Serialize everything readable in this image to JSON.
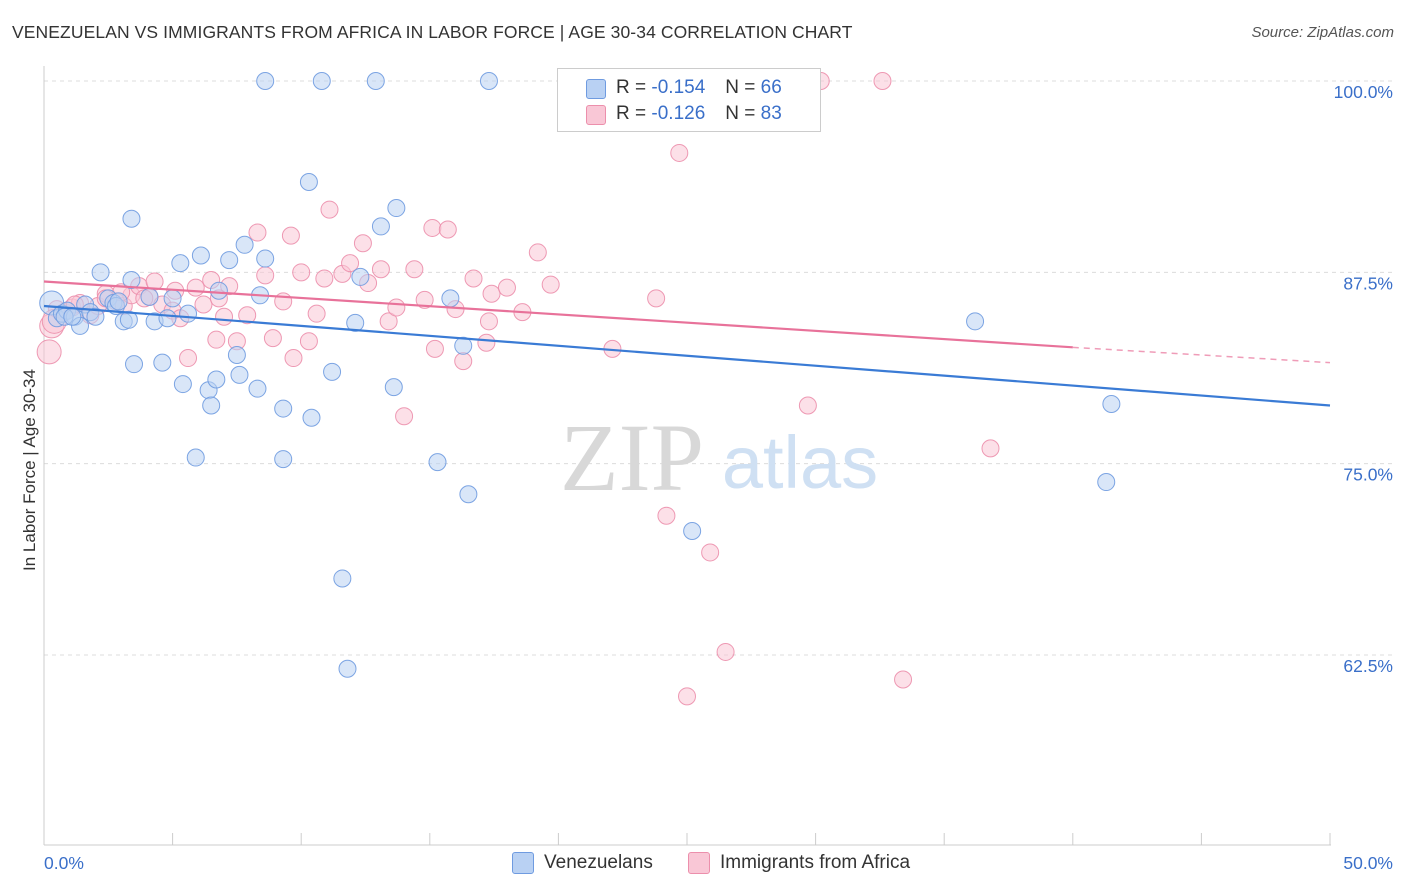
{
  "title": "VENEZUELAN VS IMMIGRANTS FROM AFRICA IN LABOR FORCE | AGE 30-34 CORRELATION CHART",
  "source": "Source: ZipAtlas.com",
  "watermark": {
    "zip": "ZIP",
    "atlas": "atlas"
  },
  "legend": {
    "r_label": "R =",
    "n_label": "N =",
    "rows": [
      {
        "r": "-0.154",
        "n": "66",
        "fill": "#b9d1f3",
        "stroke": "#6f9be0"
      },
      {
        "r": "-0.126",
        "n": "83",
        "fill": "#f9c7d6",
        "stroke": "#ec8fac"
      }
    ]
  },
  "bottom_legend": [
    {
      "label": "Venezuelans",
      "fill": "#b9d1f3",
      "stroke": "#6f9be0"
    },
    {
      "label": "Immigrants from Africa",
      "fill": "#f9c7d6",
      "stroke": "#ec8fac"
    }
  ],
  "chart_data": {
    "type": "scatter",
    "title": "VENEZUELAN VS IMMIGRANTS FROM AFRICA IN LABOR FORCE | AGE 30-34 CORRELATION CHART",
    "xlabel": "",
    "ylabel": "In Labor Force | Age 30-34",
    "xlim": [
      0,
      50
    ],
    "ylim": [
      50,
      101
    ],
    "x_ticks": [
      "0.0%",
      "50.0%"
    ],
    "y_ticks": [
      {
        "value": 100,
        "label": "100.0%"
      },
      {
        "value": 87.5,
        "label": "87.5%"
      },
      {
        "value": 75,
        "label": "75.0%"
      },
      {
        "value": 62.5,
        "label": "62.5%"
      }
    ],
    "grid": "horizontal dashed",
    "colors": {
      "blue": "#3a7bd5",
      "pink": "#e8729a",
      "tick_label": "#3a6fc9"
    },
    "series": [
      {
        "name": "Venezuelans",
        "trend": {
          "x": [
            0,
            50
          ],
          "y": [
            85.3,
            78.8
          ]
        },
        "points": [
          [
            0.3,
            85.5
          ],
          [
            0.5,
            84.5
          ],
          [
            0.7,
            84.8
          ],
          [
            0.9,
            85
          ],
          [
            1.2,
            84.6
          ],
          [
            1.4,
            84
          ],
          [
            1.6,
            85.4
          ],
          [
            1.8,
            84.9
          ],
          [
            2.0,
            84.6
          ],
          [
            2.2,
            87.5
          ],
          [
            2.5,
            85.8
          ],
          [
            2.7,
            85.5
          ],
          [
            2.8,
            85.3
          ],
          [
            3.1,
            84.3
          ],
          [
            3.3,
            84.4
          ],
          [
            3.4,
            87
          ],
          [
            3.5,
            81.5
          ],
          [
            3.4,
            91
          ],
          [
            4.1,
            85.9
          ],
          [
            4.3,
            84.3
          ],
          [
            4.6,
            81.6
          ],
          [
            4.8,
            84.5
          ],
          [
            5.0,
            85.8
          ],
          [
            5.3,
            88.1
          ],
          [
            5.4,
            80.2
          ],
          [
            5.6,
            84.8
          ],
          [
            5.9,
            75.4
          ],
          [
            6.1,
            88.6
          ],
          [
            6.4,
            79.8
          ],
          [
            6.5,
            78.8
          ],
          [
            6.7,
            80.5
          ],
          [
            6.8,
            86.3
          ],
          [
            7.2,
            88.3
          ],
          [
            7.5,
            82.1
          ],
          [
            7.6,
            80.8
          ],
          [
            7.8,
            89.3
          ],
          [
            8.3,
            79.9
          ],
          [
            8.4,
            86
          ],
          [
            8.6,
            88.4
          ],
          [
            8.6,
            100
          ],
          [
            9.3,
            78.6
          ],
          [
            9.3,
            75.3
          ],
          [
            10.3,
            93.4
          ],
          [
            10.4,
            78
          ],
          [
            10.8,
            100
          ],
          [
            11.2,
            81
          ],
          [
            11.6,
            67.5
          ],
          [
            11.8,
            61.6
          ],
          [
            12.1,
            84.2
          ],
          [
            12.3,
            87.2
          ],
          [
            12.9,
            100
          ],
          [
            13.1,
            90.5
          ],
          [
            13.6,
            80
          ],
          [
            13.7,
            91.7
          ],
          [
            15.3,
            75.1
          ],
          [
            15.8,
            85.8
          ],
          [
            16.3,
            82.7
          ],
          [
            16.5,
            73
          ],
          [
            17.3,
            100
          ],
          [
            25.2,
            70.6
          ],
          [
            36.2,
            84.3
          ],
          [
            41.3,
            73.8
          ],
          [
            41.5,
            78.9
          ],
          [
            0.8,
            84.6
          ],
          [
            1.1,
            84.6
          ],
          [
            2.9,
            85.6
          ]
        ]
      },
      {
        "name": "Immigrants from Africa",
        "trend": {
          "x": [
            0,
            40
          ],
          "y": [
            86.9,
            82.6
          ]
        },
        "trend_dashed": {
          "x": [
            40,
            50
          ],
          "y": [
            82.6,
            81.6
          ]
        },
        "points": [
          [
            0.2,
            82.3
          ],
          [
            0.3,
            84
          ],
          [
            0.5,
            85.1
          ],
          [
            0.8,
            84.9
          ],
          [
            1.1,
            85.2
          ],
          [
            1.4,
            85.5
          ],
          [
            1.8,
            84.7
          ],
          [
            2.1,
            85.3
          ],
          [
            2.4,
            86.1
          ],
          [
            2.8,
            85.6
          ],
          [
            3.1,
            85.3
          ],
          [
            3.4,
            86
          ],
          [
            3.7,
            86.6
          ],
          [
            4.1,
            85.9
          ],
          [
            4.3,
            86.9
          ],
          [
            4.6,
            85.4
          ],
          [
            5.0,
            85
          ],
          [
            5.3,
            84.5
          ],
          [
            5.6,
            81.9
          ],
          [
            5.9,
            86.5
          ],
          [
            6.2,
            85.4
          ],
          [
            6.5,
            87
          ],
          [
            6.7,
            83.1
          ],
          [
            7.0,
            84.6
          ],
          [
            7.2,
            86.6
          ],
          [
            7.5,
            83
          ],
          [
            7.9,
            84.7
          ],
          [
            8.3,
            90.1
          ],
          [
            8.6,
            87.3
          ],
          [
            8.9,
            83.2
          ],
          [
            9.3,
            85.6
          ],
          [
            9.6,
            89.9
          ],
          [
            9.7,
            81.9
          ],
          [
            10.0,
            87.5
          ],
          [
            10.3,
            83
          ],
          [
            10.6,
            84.8
          ],
          [
            10.9,
            87.1
          ],
          [
            11.1,
            91.6
          ],
          [
            11.6,
            87.4
          ],
          [
            11.9,
            88.1
          ],
          [
            12.4,
            89.4
          ],
          [
            12.6,
            86.8
          ],
          [
            13.1,
            87.7
          ],
          [
            13.4,
            84.3
          ],
          [
            13.7,
            85.2
          ],
          [
            14.0,
            78.1
          ],
          [
            14.4,
            87.7
          ],
          [
            14.8,
            85.7
          ],
          [
            15.1,
            90.4
          ],
          [
            15.2,
            82.5
          ],
          [
            15.7,
            90.3
          ],
          [
            16.0,
            85.1
          ],
          [
            16.3,
            81.7
          ],
          [
            16.7,
            87.1
          ],
          [
            17.2,
            82.9
          ],
          [
            17.3,
            84.3
          ],
          [
            17.4,
            86.1
          ],
          [
            18.0,
            86.5
          ],
          [
            18.6,
            84.9
          ],
          [
            19.2,
            88.8
          ],
          [
            19.7,
            86.7
          ],
          [
            20.3,
            100
          ],
          [
            22.1,
            82.5
          ],
          [
            22.3,
            100
          ],
          [
            23.5,
            100
          ],
          [
            23.8,
            85.8
          ],
          [
            24.2,
            71.6
          ],
          [
            24.7,
            95.3
          ],
          [
            25.9,
            69.2
          ],
          [
            26.5,
            62.7
          ],
          [
            25.0,
            59.8
          ],
          [
            29.7,
            78.8
          ],
          [
            30.2,
            100
          ],
          [
            32.6,
            100
          ],
          [
            36.8,
            76
          ],
          [
            33.4,
            60.9
          ],
          [
            1.2,
            85.4
          ],
          [
            2.4,
            85.8
          ],
          [
            3.9,
            85.8
          ],
          [
            5.1,
            86.3
          ],
          [
            6.8,
            85.8
          ],
          [
            0.4,
            84.3
          ],
          [
            3.0,
            86.2
          ]
        ]
      }
    ]
  }
}
